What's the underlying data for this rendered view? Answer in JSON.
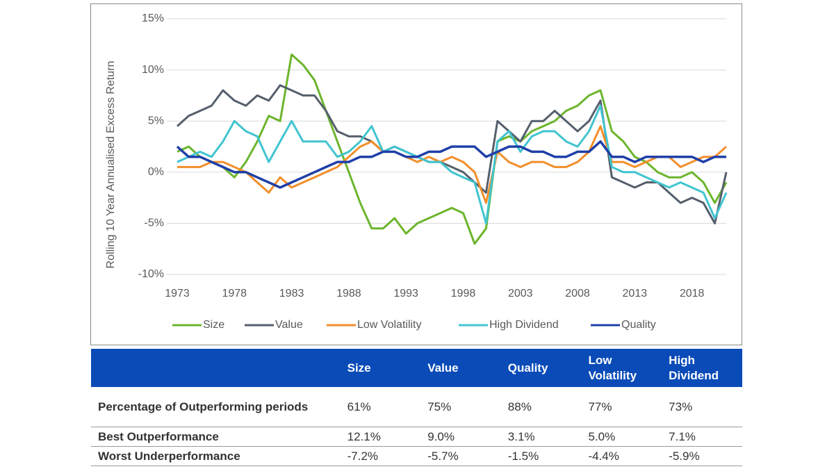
{
  "chart_data": {
    "type": "line",
    "y_label": "Rolling 10 Year Annualised Excess Return",
    "x": [
      1973,
      1974,
      1975,
      1976,
      1977,
      1978,
      1979,
      1980,
      1981,
      1982,
      1983,
      1984,
      1985,
      1986,
      1987,
      1988,
      1989,
      1990,
      1991,
      1992,
      1993,
      1994,
      1995,
      1996,
      1997,
      1998,
      1999,
      2000,
      2001,
      2002,
      2003,
      2004,
      2005,
      2006,
      2007,
      2008,
      2009,
      2010,
      2011,
      2012,
      2013,
      2014,
      2015,
      2016,
      2017,
      2018,
      2019,
      2020,
      2021
    ],
    "xlim": [
      1973,
      2021
    ],
    "xticks": [
      1973,
      1978,
      1983,
      1988,
      1993,
      1998,
      2003,
      2008,
      2013,
      2018
    ],
    "ylim": [
      -10,
      15
    ],
    "yticks": [
      {
        "value": -10,
        "label": "-10%"
      },
      {
        "value": -5,
        "label": "-5%"
      },
      {
        "value": 0,
        "label": "0%"
      },
      {
        "value": 5,
        "label": "5%"
      },
      {
        "value": 10,
        "label": "10%"
      },
      {
        "value": 15,
        "label": "15%"
      }
    ],
    "grid": true,
    "legend": "bottom",
    "series": [
      {
        "name": "Size",
        "color": "#6cb52d",
        "values": [
          2,
          2.5,
          1.5,
          1,
          0.5,
          -0.5,
          1,
          3,
          5.5,
          5,
          11.5,
          10.5,
          9,
          6,
          3,
          0,
          -3,
          -5.5,
          -5.5,
          -4.5,
          -6,
          -5,
          -4.5,
          -4,
          -3.5,
          -4,
          -7,
          -5.5,
          3,
          3.5,
          3,
          4,
          4.5,
          5,
          6,
          6.5,
          7.5,
          8,
          4,
          3,
          1.5,
          1,
          0,
          -0.5,
          -0.5,
          0,
          -1,
          -3,
          -1
        ]
      },
      {
        "name": "Value",
        "color": "#555f6b",
        "values": [
          4.5,
          5.5,
          6,
          6.5,
          8,
          7,
          6.5,
          7.5,
          7,
          8.5,
          8,
          7.5,
          7.5,
          6,
          4,
          3.5,
          3.5,
          3,
          2,
          2.5,
          2,
          1.5,
          1,
          1,
          0.5,
          0,
          -1,
          -2,
          5,
          4,
          3,
          5,
          5,
          6,
          5,
          4,
          5,
          7,
          -0.5,
          -1,
          -1.5,
          -1,
          -1,
          -2,
          -3,
          -2.5,
          -3,
          -5,
          0
        ]
      },
      {
        "name": "Low Volatility",
        "color": "#f28e2b",
        "values": [
          0.5,
          0.5,
          0.5,
          1,
          1,
          0.5,
          0,
          -1,
          -2,
          -0.5,
          -1.5,
          -1,
          -0.5,
          0,
          0.5,
          1.5,
          2.5,
          3,
          2,
          2,
          1.5,
          1,
          1.5,
          1,
          1.5,
          1,
          0,
          -3,
          2,
          1,
          0.5,
          1,
          1,
          0.5,
          0.5,
          1,
          2,
          4.5,
          1,
          1,
          0.5,
          1,
          1.5,
          1.5,
          0.5,
          1,
          1.5,
          1.5,
          2.5
        ]
      },
      {
        "name": "High Dividend",
        "color": "#40c4d0",
        "values": [
          1,
          1.5,
          2,
          1.5,
          3,
          5,
          4,
          3.5,
          1,
          3,
          5,
          3,
          3,
          3,
          1.5,
          2,
          3,
          4.5,
          2,
          2.5,
          2,
          1.5,
          1,
          1,
          0,
          -0.5,
          -1,
          -5,
          3,
          4,
          2,
          3.5,
          4,
          4,
          3,
          2.5,
          4,
          6.5,
          0.5,
          0,
          0,
          -0.5,
          -1,
          -1.5,
          -1,
          -1.5,
          -2,
          -4.5,
          -2
        ]
      },
      {
        "name": "Quality",
        "color": "#1f3fa8",
        "values": [
          2.5,
          1.5,
          1.5,
          1,
          0.5,
          0,
          0,
          -0.5,
          -1,
          -1.5,
          -1,
          -0.5,
          0,
          0.5,
          1,
          1,
          1.5,
          1.5,
          2,
          2,
          1.5,
          1.5,
          2,
          2,
          2.5,
          2.5,
          2.5,
          1.5,
          2,
          2.5,
          2.5,
          2,
          2,
          1.5,
          1.5,
          2,
          2,
          3,
          1.5,
          1.5,
          1,
          1.5,
          1.5,
          1.5,
          1.5,
          1.5,
          1,
          1.5,
          1.5
        ]
      }
    ]
  },
  "table": {
    "columns": [
      "Size",
      "Value",
      "Quality",
      "Low Volatility",
      "High Dividend"
    ],
    "rows": [
      {
        "label": "Percentage of Outperforming periods",
        "cells": [
          "61%",
          "75%",
          "88%",
          "77%",
          "73%"
        ]
      },
      {
        "label": "Best Outperformance",
        "cells": [
          "12.1%",
          "9.0%",
          "3.1%",
          "5.0%",
          "7.1%"
        ]
      },
      {
        "label": "Worst Underperformance",
        "cells": [
          "-7.2%",
          "-5.7%",
          "-1.5%",
          "-4.4%",
          "-5.9%"
        ]
      }
    ]
  }
}
